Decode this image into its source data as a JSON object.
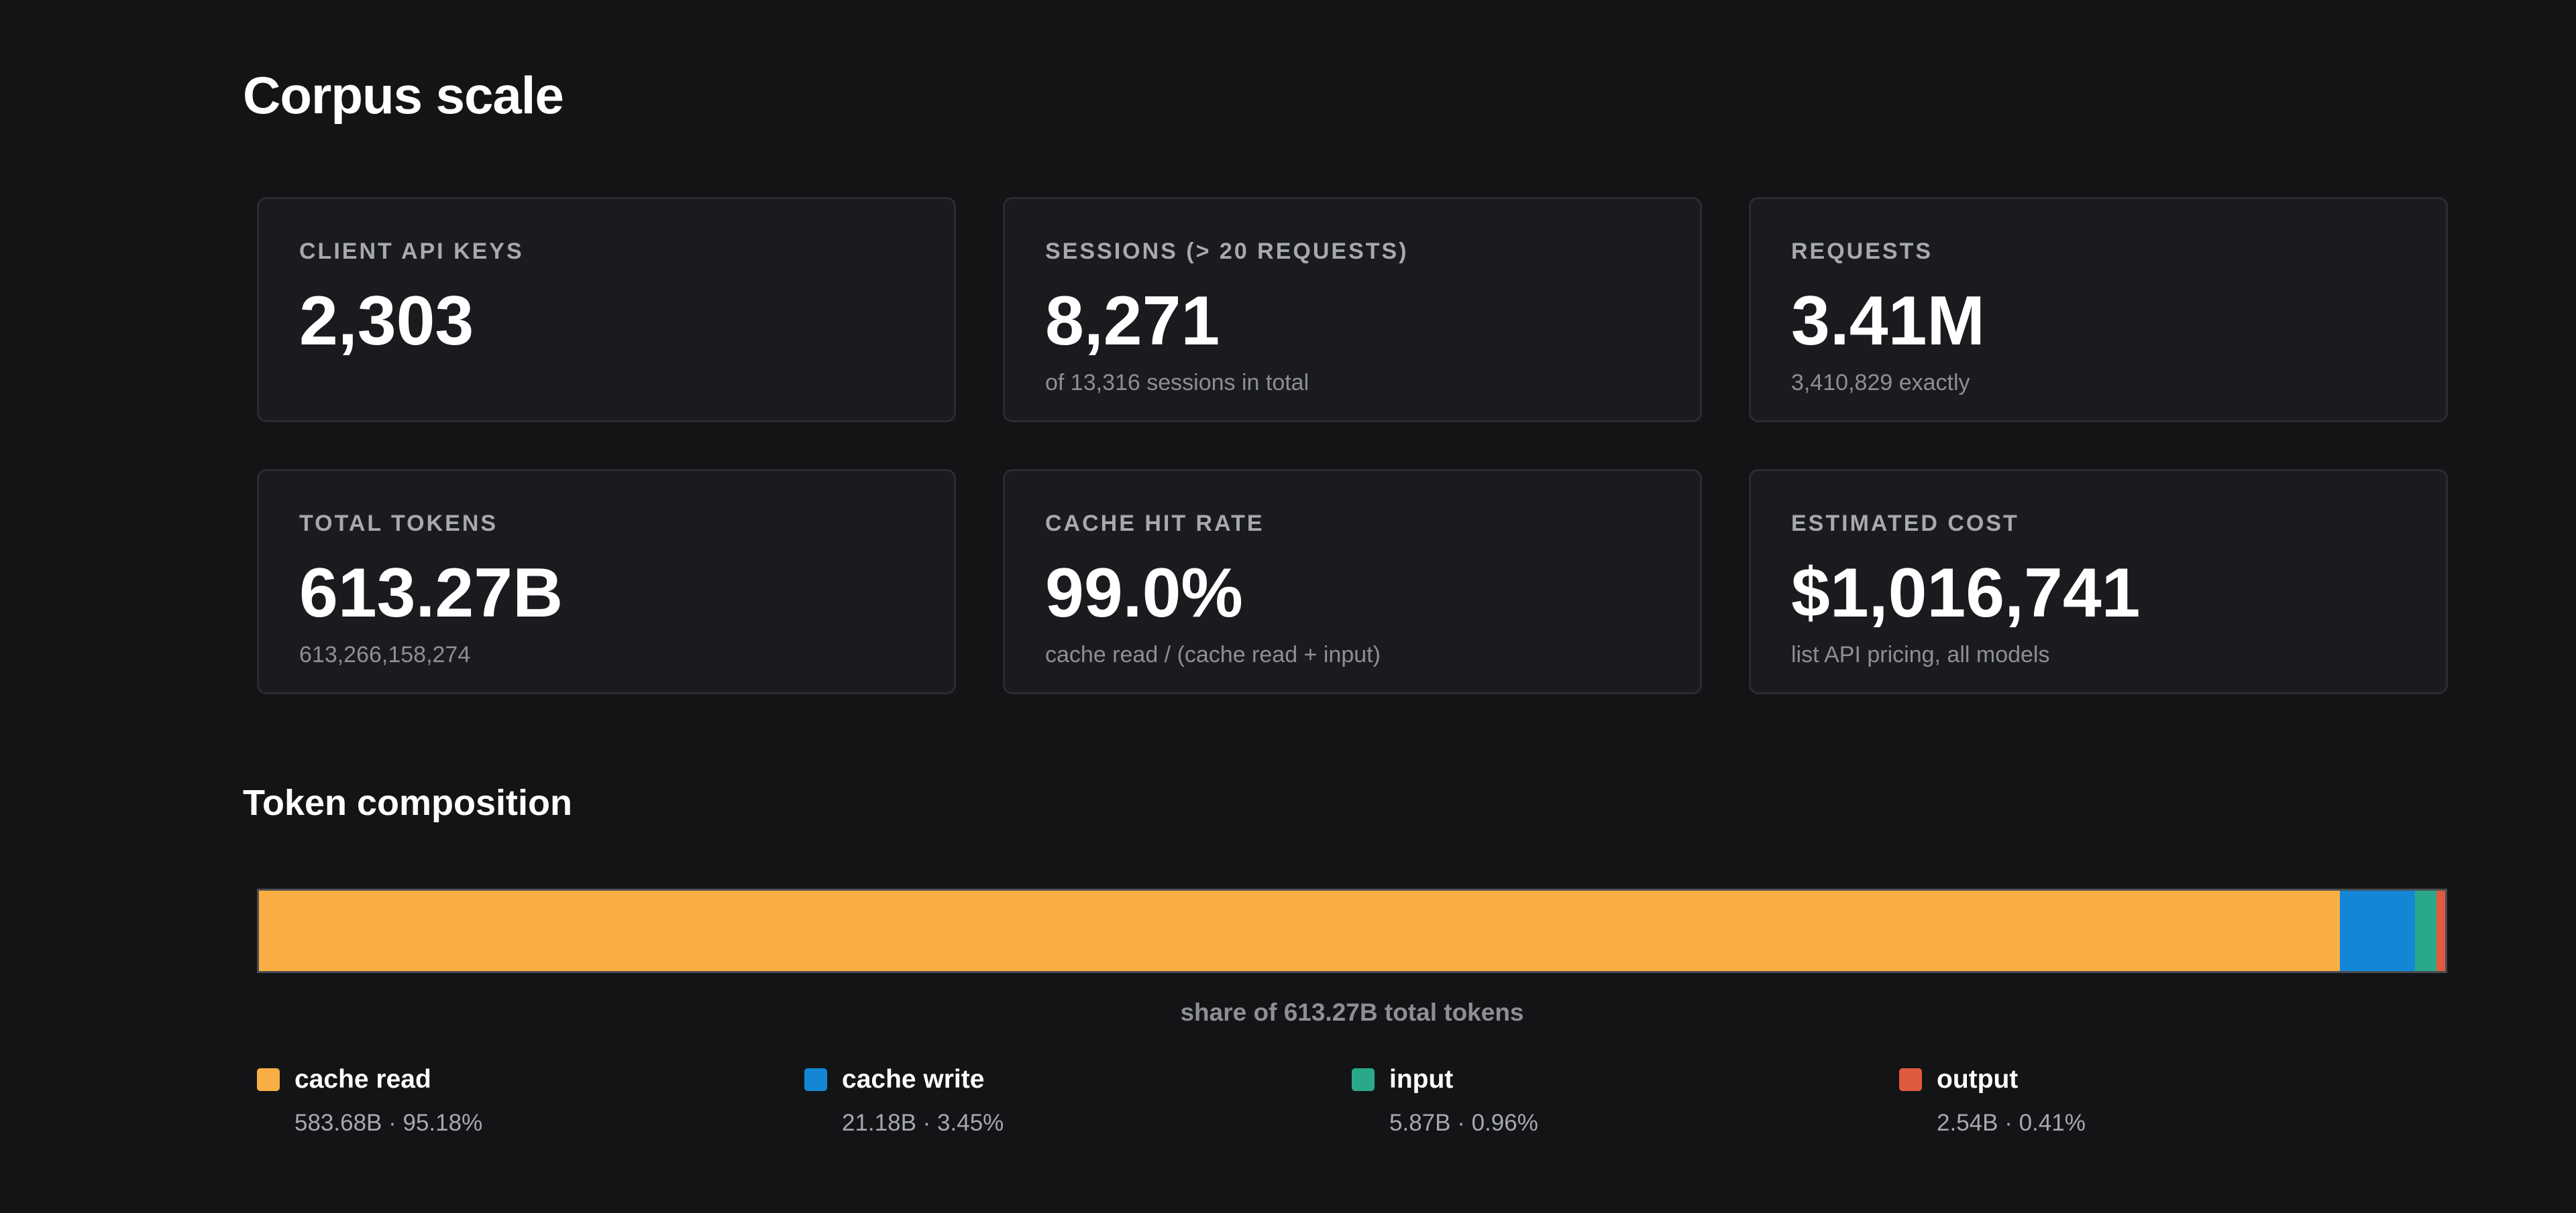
{
  "page": {
    "title": "Corpus scale"
  },
  "cards": [
    {
      "label": "CLIENT API KEYS",
      "value": "2,303",
      "sub": ""
    },
    {
      "label": "SESSIONS (> 20 REQUESTS)",
      "value": "8,271",
      "sub": "of 13,316 sessions in total"
    },
    {
      "label": "REQUESTS",
      "value": "3.41M",
      "sub": "3,410,829 exactly"
    },
    {
      "label": "TOTAL TOKENS",
      "value": "613.27B",
      "sub": "613,266,158,274"
    },
    {
      "label": "CACHE HIT RATE",
      "value": "99.0%",
      "sub": "cache read / (cache read + input)"
    },
    {
      "label": "ESTIMATED COST",
      "value": "$1,016,741",
      "sub": "list API pricing, all models"
    }
  ],
  "composition": {
    "title": "Token composition",
    "caption": "share of 613.27B total tokens",
    "legend": [
      {
        "name": "cache read",
        "value": "583.68B · 95.18%"
      },
      {
        "name": "cache write",
        "value": "21.18B · 3.45%"
      },
      {
        "name": "input",
        "value": "5.87B · 0.96%"
      },
      {
        "name": "output",
        "value": "2.54B · 0.41%"
      }
    ]
  },
  "chart_data": {
    "type": "bar",
    "orientation": "horizontal-stacked",
    "categories": [
      "cache read",
      "cache write",
      "input",
      "output"
    ],
    "values": [
      95.18,
      3.45,
      0.96,
      0.41
    ],
    "colors": [
      "#f8ae42",
      "#1387d6",
      "#2aa98a",
      "#e05a3f"
    ]
  }
}
